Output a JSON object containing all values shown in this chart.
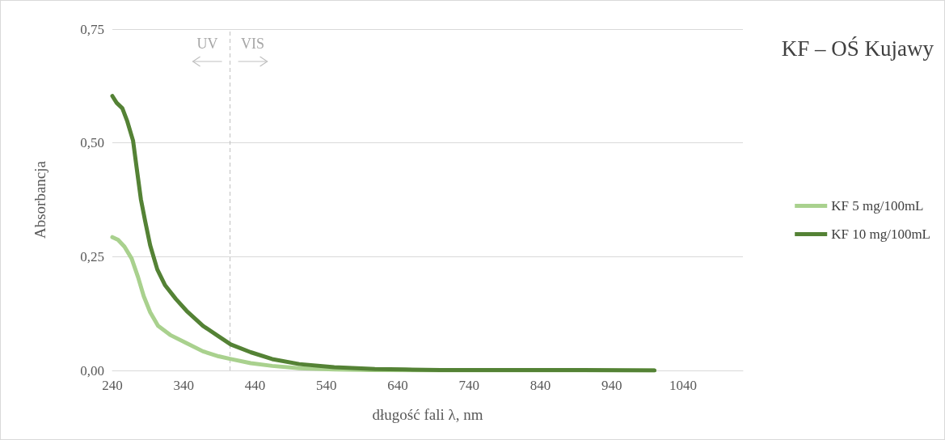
{
  "chart_data": {
    "type": "line",
    "title": "KF – OŚ Kujawy",
    "xlabel": "długość fali λ, nm",
    "ylabel": "Absorbancja",
    "series": [
      {
        "name": "KF 5 mg/100mL",
        "color": "#a9d18e",
        "x": [
          240,
          248,
          257,
          267,
          276,
          284,
          293,
          304,
          321,
          344,
          367,
          389,
          406,
          434,
          464,
          502,
          551,
          600,
          700,
          800,
          900,
          1000
        ],
        "values": [
          0.293,
          0.287,
          0.272,
          0.246,
          0.205,
          0.163,
          0.128,
          0.098,
          0.078,
          0.06,
          0.042,
          0.031,
          0.025,
          0.016,
          0.01,
          0.005,
          0.002,
          0.001,
          0,
          0,
          0,
          0
        ]
      },
      {
        "name": "KF 10 mg/100mL",
        "color": "#548235",
        "x": [
          240,
          246,
          254,
          261,
          269,
          274,
          280,
          286,
          293,
          303,
          314,
          329,
          344,
          367,
          389,
          406,
          434,
          464,
          502,
          551,
          608,
          650,
          700,
          800,
          900,
          1000
        ],
        "values": [
          0.603,
          0.588,
          0.576,
          0.547,
          0.505,
          0.446,
          0.376,
          0.328,
          0.275,
          0.222,
          0.187,
          0.157,
          0.131,
          0.098,
          0.075,
          0.057,
          0.04,
          0.025,
          0.014,
          0.007,
          0.003,
          0.002,
          0.001,
          0.001,
          0.001,
          0
        ]
      }
    ],
    "xlim": [
      240,
      1124
    ],
    "xticks": [
      240,
      340,
      440,
      540,
      640,
      740,
      840,
      940,
      1040
    ],
    "ylim": [
      0,
      0.75
    ],
    "yticks": [
      {
        "value": 0,
        "label": "0,00"
      },
      {
        "value": 0.25,
        "label": "0,25"
      },
      {
        "value": 0.5,
        "label": "0,50"
      },
      {
        "value": 0.75,
        "label": "0,75"
      }
    ],
    "grid": "y",
    "legend": "right",
    "marker": "none",
    "line_style": "solid",
    "ref_lines": [
      {
        "axis": "x",
        "value": 405,
        "label": null,
        "color": "#bfbfbf",
        "line_style": "dashed"
      }
    ],
    "annotations": [
      "UV",
      "VIS"
    ]
  }
}
